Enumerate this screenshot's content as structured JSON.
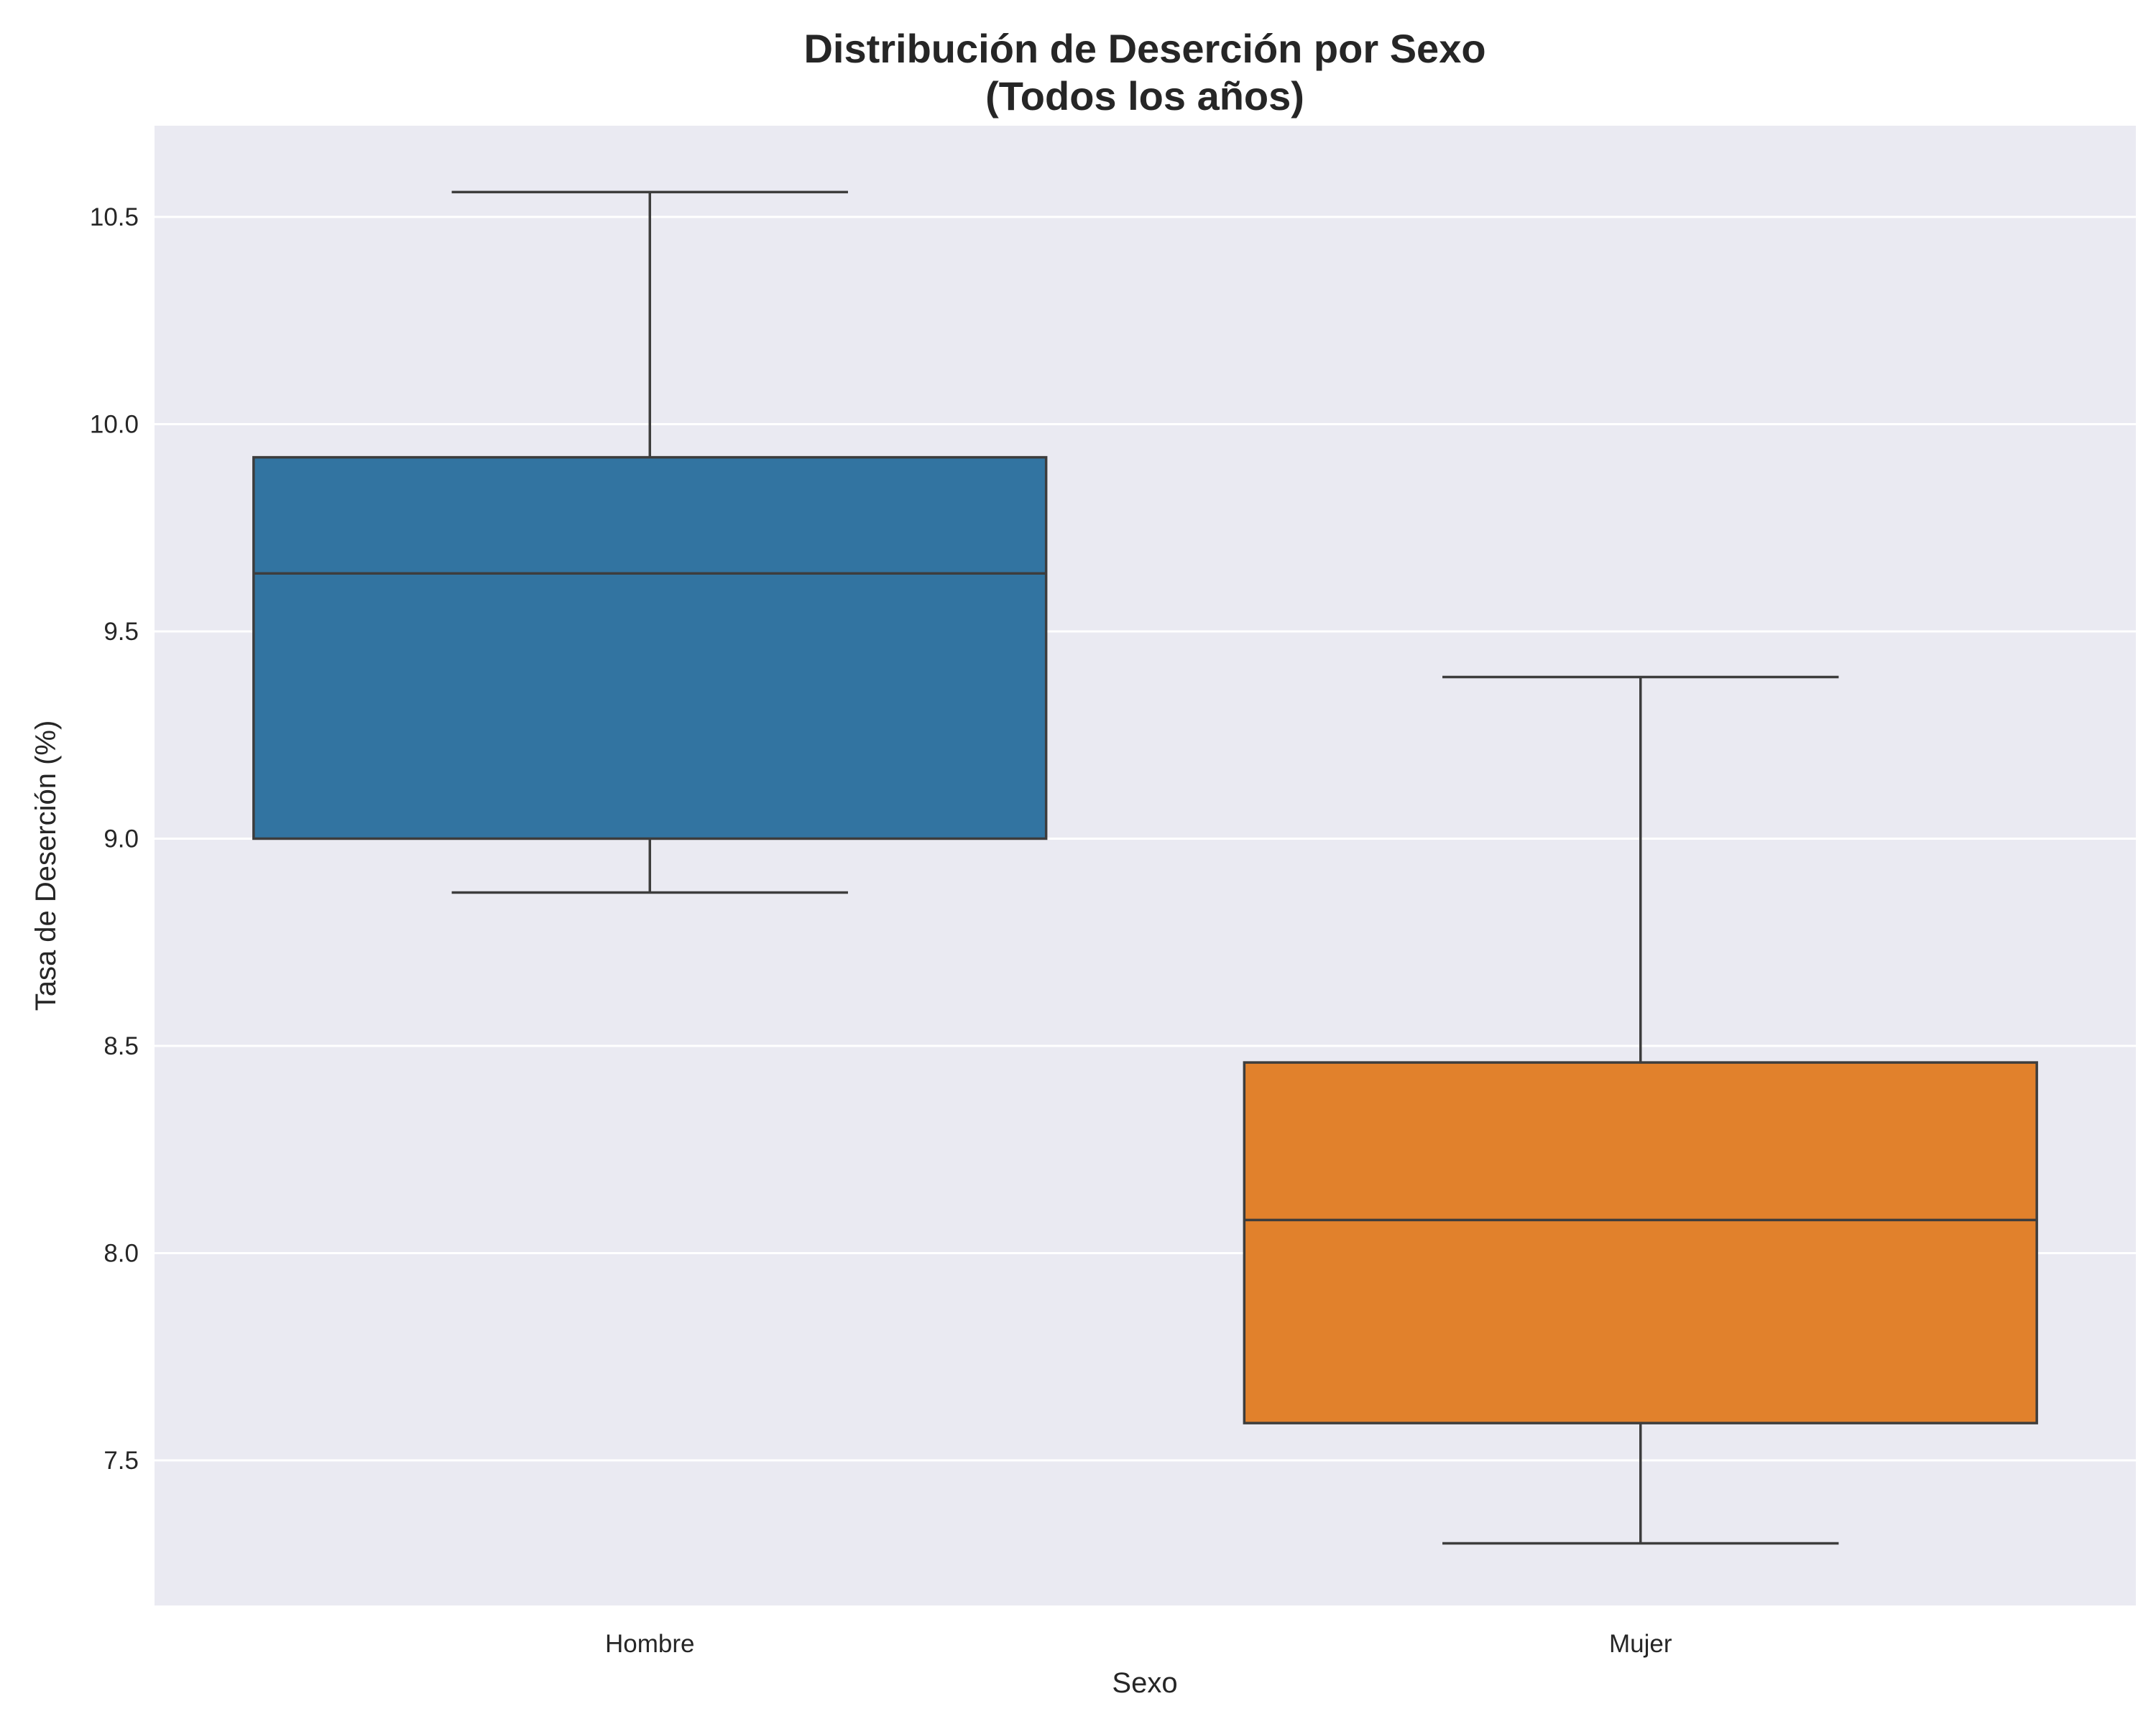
{
  "chart_data": {
    "type": "box",
    "title_lines": [
      "Distribución de Deserción por Sexo",
      "(Todos los años)"
    ],
    "xlabel": "Sexo",
    "ylabel": "Tasa de Deserción (%)",
    "ylim": [
      7.15,
      10.72
    ],
    "yticks": [
      7.5,
      8.0,
      8.5,
      9.0,
      9.5,
      10.0,
      10.5
    ],
    "ytick_labels": [
      "7.5",
      "8.0",
      "8.5",
      "9.0",
      "9.5",
      "10.0",
      "10.5"
    ],
    "grid": true,
    "categories": [
      "Hombre",
      "Mujer"
    ],
    "boxes": [
      {
        "category": "Hombre",
        "whisker_low": 8.87,
        "q1": 9.0,
        "median": 9.64,
        "q3": 9.92,
        "whisker_high": 10.56,
        "color": "#3274a1"
      },
      {
        "category": "Mujer",
        "whisker_low": 7.3,
        "q1": 7.59,
        "median": 8.08,
        "q3": 8.46,
        "whisker_high": 9.39,
        "color": "#e1812c"
      }
    ],
    "colors": {
      "plot_background": "#eaeaf2",
      "grid": "#ffffff",
      "line": "#3d3d3d"
    }
  }
}
